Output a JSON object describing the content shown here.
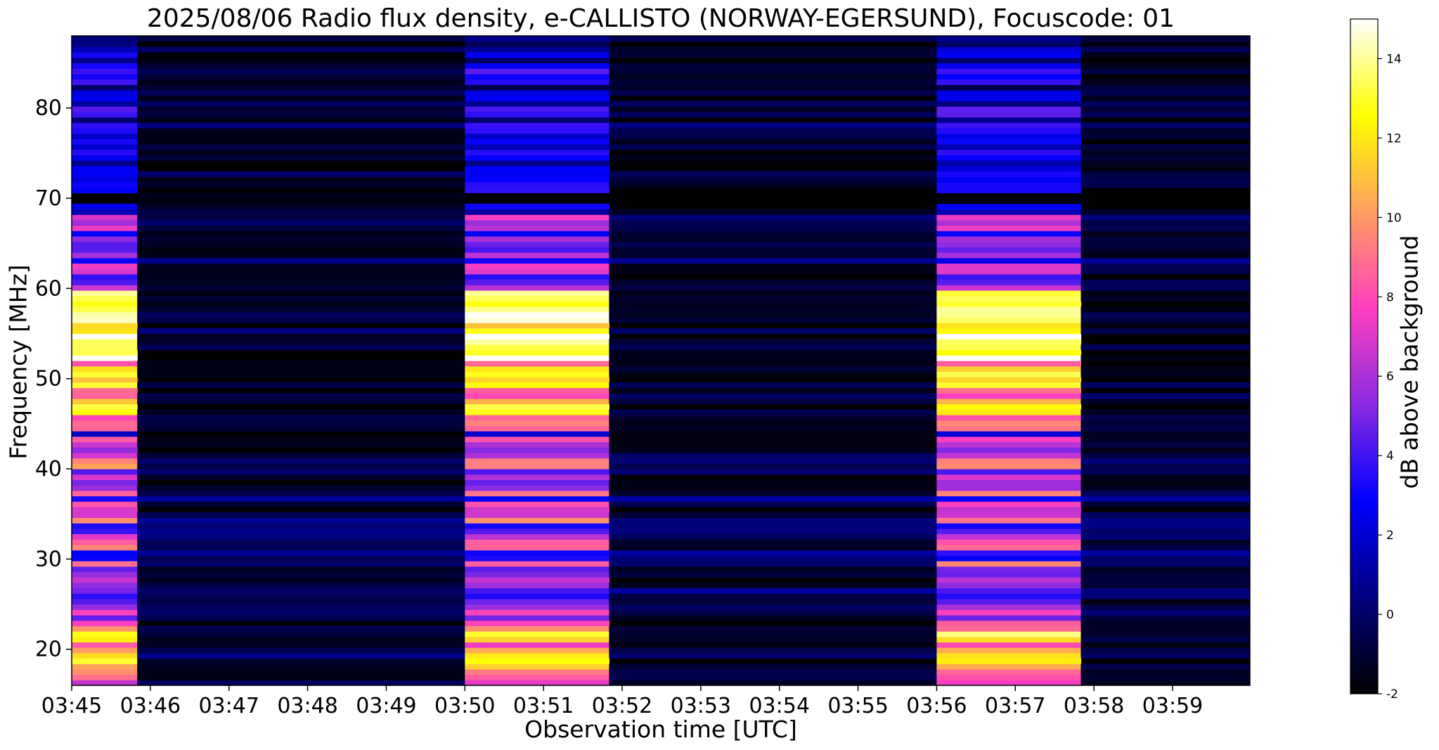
{
  "chart_data": {
    "type": "heatmap",
    "title": "2025/08/06  Radio flux density, e-CALLISTO (NORWAY-EGERSUND), Focuscode: 01",
    "xlabel": "Observation time [UTC]",
    "ylabel": "Frequency [MHz]",
    "x_ticks": [
      "03:45",
      "03:46",
      "03:47",
      "03:48",
      "03:49",
      "03:50",
      "03:51",
      "03:52",
      "03:53",
      "03:54",
      "03:55",
      "03:56",
      "03:57",
      "03:58",
      "03:59"
    ],
    "x_range": [
      "03:45:00",
      "03:59:59"
    ],
    "y_ticks": [
      20,
      30,
      40,
      50,
      60,
      70,
      80
    ],
    "y_range": [
      16,
      88
    ],
    "colorbar": {
      "label": "dB above background",
      "ticks": [
        -2,
        0,
        2,
        4,
        6,
        8,
        10,
        12,
        14
      ],
      "range": [
        -2,
        15
      ],
      "colormap": "gnuplot2",
      "stops": [
        "#000000",
        "#00007f",
        "#0000ff",
        "#8a2be2",
        "#ff3fbf",
        "#ff9f5f",
        "#ffff00",
        "#ffffff"
      ]
    },
    "segments": [
      {
        "start": "03:45:00",
        "end": "03:45:50",
        "level": "elevated"
      },
      {
        "start": "03:45:50",
        "end": "03:50:00",
        "level": "background"
      },
      {
        "start": "03:50:00",
        "end": "03:51:50",
        "level": "elevated"
      },
      {
        "start": "03:51:50",
        "end": "03:56:00",
        "level": "background"
      },
      {
        "start": "03:56:00",
        "end": "03:57:50",
        "level": "elevated"
      },
      {
        "start": "03:57:50",
        "end": "03:59:59",
        "level": "background"
      }
    ]
  }
}
